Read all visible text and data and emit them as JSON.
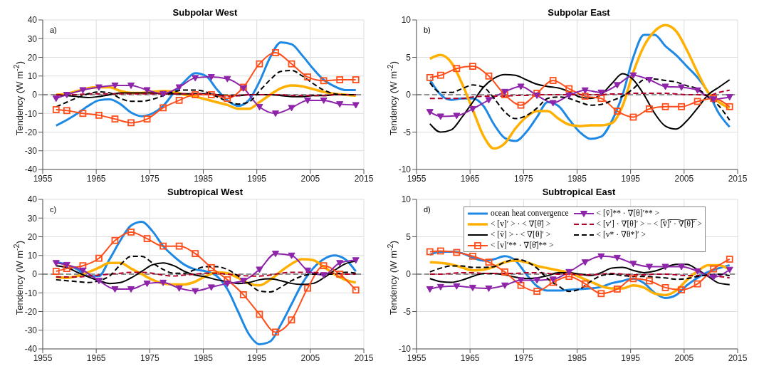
{
  "chart_data": [
    {
      "type": "line",
      "title": "Subpolar West",
      "ylabel": "Tendency (W m$^{-2}$)",
      "annotations": [
        "a)"
      ],
      "xlim": [
        1955,
        2015
      ],
      "xticks": [
        1955,
        1965,
        1975,
        1985,
        1995,
        2005,
        2015
      ],
      "ylim": [
        -40,
        40
      ],
      "yticks": [
        -40,
        -30,
        -20,
        -10,
        0,
        10,
        20,
        30,
        40
      ],
      "grid": true,
      "legend": false,
      "ref_lines": [
        {
          "axis": "y",
          "value": 0,
          "color": "#000000",
          "line_style": "dashed"
        }
      ],
      "x": [
        1957.5,
        1959.5,
        1961.5,
        1963.5,
        1965.5,
        1967.5,
        1969.5,
        1971.5,
        1973.5,
        1975.5,
        1977.5,
        1979.5,
        1981.5,
        1983.5,
        1985.5,
        1987.5,
        1989.5,
        1991.5,
        1993.5,
        1995.5,
        1997.5,
        1999.5,
        2001.5,
        2003.5,
        2005.5,
        2007.5,
        2009.5,
        2011.5,
        2013.5
      ],
      "series": [
        {
          "color": "#1e88e5",
          "line_style": "solid",
          "marker": "none",
          "values": [
            -16.5,
            -13.5,
            -10,
            -6,
            -3,
            -2.5,
            -5,
            -9.5,
            -11.5,
            -10,
            -6,
            1,
            7,
            11.5,
            10,
            3,
            -3,
            -6,
            -3,
            7,
            20,
            28,
            27,
            21,
            14,
            8,
            4.5,
            2.5,
            2.5
          ]
        },
        {
          "color": "#ffb000",
          "line_style": "solid",
          "marker": "none",
          "values": [
            0,
            0.5,
            2,
            3.5,
            4,
            4,
            2,
            1,
            1,
            1.5,
            2,
            1.5,
            0,
            -1,
            -2.5,
            -4,
            -5.5,
            -7.5,
            -7.5,
            -4,
            0,
            3.5,
            5,
            4.5,
            3,
            1.5,
            0.5,
            0,
            -0.5
          ]
        },
        {
          "color": "#000000",
          "line_style": "solid",
          "marker": "none",
          "values": [
            0,
            -0.5,
            -1,
            -1.5,
            -1,
            0,
            1,
            1,
            1,
            1,
            0.5,
            0.5,
            0.5,
            0.5,
            0.5,
            0,
            -0.5,
            -0.5,
            0,
            0,
            0,
            -0.5,
            -1,
            -1,
            -0.5,
            -0.5,
            0,
            0,
            0
          ]
        },
        {
          "color": "#ff4d1a",
          "line_style": "solid",
          "marker": "square",
          "x": [
            1957.5,
            1959.5,
            1962.5,
            1965.5,
            1968.5,
            1971.5,
            1974.5,
            1977.5,
            1980.5,
            1983.5,
            1986.5,
            1989.5,
            1992.5,
            1995.5,
            1998.5,
            2001.5,
            2004.5,
            2007.5,
            2010.5,
            2013.5
          ],
          "values": [
            -8,
            -8.5,
            -10,
            -11,
            -13,
            -15,
            -13,
            -7,
            -3,
            0,
            0,
            -2,
            4,
            16.5,
            22.5,
            16.5,
            9.5,
            7.5,
            8,
            8
          ]
        },
        {
          "color": "#8e24aa",
          "line_style": "solid",
          "marker": "triangle",
          "x": [
            1957.5,
            1959.5,
            1962.5,
            1965.5,
            1968.5,
            1971.5,
            1974.5,
            1977.5,
            1980.5,
            1983.5,
            1986.5,
            1989.5,
            1992.5,
            1995.5,
            1998.5,
            2001.5,
            2004.5,
            2007.5,
            2010.5,
            2013.5
          ],
          "values": [
            -2,
            0,
            2.5,
            4,
            5,
            5,
            2.5,
            0.5,
            4,
            9,
            9.5,
            8.5,
            3.5,
            -6.5,
            -10,
            -7,
            -3,
            -3,
            -5,
            -5.5
          ]
        },
        {
          "color": "#b0002a",
          "line_style": "dashed",
          "marker": "none",
          "values": [
            0,
            0,
            0,
            0.5,
            0.5,
            0.5,
            0.5,
            0.5,
            0.5,
            0.5,
            0.5,
            0.5,
            0.5,
            0.5,
            0.5,
            0,
            -1,
            -0.5,
            0,
            0,
            0,
            0,
            -0.5,
            -0.5,
            -0.5,
            -0.5,
            0,
            0,
            0
          ]
        },
        {
          "color": "#000000",
          "line_style": "dashed",
          "marker": "none",
          "values": [
            -6.5,
            -4,
            -1.5,
            0.5,
            1.5,
            1,
            -2,
            -3.5,
            -3.5,
            -2.5,
            -0.5,
            1.5,
            2.5,
            2.5,
            1.5,
            -1,
            -3.5,
            -5,
            -4,
            2,
            8,
            12.5,
            13,
            10,
            6,
            2.5,
            0.5,
            0,
            0
          ]
        }
      ]
    },
    {
      "type": "line",
      "title": "Subpolar East",
      "ylabel": "Tendency (W m$^{-2}$)",
      "annotations": [
        "b)"
      ],
      "xlim": [
        1955,
        2015
      ],
      "xticks": [
        1955,
        1965,
        1975,
        1985,
        1995,
        2005,
        2015
      ],
      "ylim": [
        -10,
        10
      ],
      "yticks": [
        -10,
        -5,
        0,
        5,
        10
      ],
      "grid": true,
      "legend": false,
      "ref_lines": [
        {
          "axis": "y",
          "value": 0,
          "color": "#000000",
          "line_style": "dashed"
        }
      ],
      "x": [
        1957.5,
        1959.5,
        1961.5,
        1963.5,
        1965.5,
        1967.5,
        1969.5,
        1971.5,
        1973.5,
        1975.5,
        1977.5,
        1979.5,
        1981.5,
        1983.5,
        1985.5,
        1987.5,
        1989.5,
        1991.5,
        1993.5,
        1995.5,
        1997.5,
        1999.5,
        2001.5,
        2003.5,
        2005.5,
        2007.5,
        2009.5,
        2011.5,
        2013.5
      ],
      "series": [
        {
          "color": "#1e88e5",
          "line_style": "solid",
          "marker": "none",
          "values": [
            2,
            0,
            -0.7,
            -0.5,
            -0.5,
            -1.5,
            -4,
            -5.8,
            -6.2,
            -5,
            -3,
            -1,
            -1.5,
            -3.3,
            -5,
            -5.9,
            -5.6,
            -3.5,
            0,
            5,
            8,
            8,
            6.5,
            5.3,
            3.8,
            2.3,
            0.3,
            -2.5,
            -4.3
          ]
        },
        {
          "color": "#ffb000",
          "line_style": "solid",
          "marker": "none",
          "values": [
            4.8,
            5.3,
            4.3,
            1.5,
            -2,
            -5.5,
            -7.2,
            -6.5,
            -4.5,
            -3,
            -2.2,
            -2.2,
            -3.2,
            -4,
            -4.2,
            -4.1,
            -4.1,
            -3.8,
            -1.5,
            3,
            6.5,
            8.5,
            9.3,
            8.5,
            6,
            3,
            0.3,
            -1,
            -1.8
          ]
        },
        {
          "color": "#000000",
          "line_style": "solid",
          "marker": "none",
          "values": [
            -3.9,
            -5,
            -4.7,
            -3,
            -1,
            1,
            2.2,
            2.7,
            2.6,
            2,
            1.4,
            1.1,
            0.9,
            0.4,
            -0.3,
            -0.5,
            0,
            1.5,
            2.8,
            2,
            0,
            -2.5,
            -4.2,
            -4.6,
            -3.5,
            -1.8,
            0,
            1,
            2
          ]
        },
        {
          "color": "#ff4d1a",
          "line_style": "solid",
          "marker": "square",
          "x": [
            1957.5,
            1959.5,
            1962.5,
            1965.5,
            1968.5,
            1971.5,
            1974.5,
            1977.5,
            1980.5,
            1983.5,
            1986.5,
            1989.5,
            1992.5,
            1995.5,
            1998.5,
            2001.5,
            2004.5,
            2007.5,
            2010.5,
            2013.5
          ],
          "values": [
            2.3,
            2.6,
            3.5,
            3.8,
            2.5,
            0,
            -1.4,
            0.2,
            1.9,
            0.8,
            -0.2,
            -0.5,
            -2.2,
            -3,
            -1.9,
            -1.6,
            -1.6,
            -0.9,
            -0.5,
            -1.6
          ]
        },
        {
          "color": "#8e24aa",
          "line_style": "solid",
          "marker": "triangle",
          "x": [
            1957.5,
            1959.5,
            1962.5,
            1965.5,
            1968.5,
            1971.5,
            1974.5,
            1977.5,
            1980.5,
            1983.5,
            1986.5,
            1989.5,
            1992.5,
            1995.5,
            1998.5,
            2001.5,
            2004.5,
            2007.5,
            2010.5,
            2013.5
          ],
          "values": [
            -2.3,
            -2.9,
            -2.8,
            -1.9,
            -0.7,
            0.4,
            1.1,
            -0.1,
            -1.1,
            -0.1,
            0.6,
            0.3,
            1.3,
            2.6,
            2,
            1.1,
            1,
            0.6,
            -0.6,
            -0.3
          ]
        },
        {
          "color": "#b0002a",
          "line_style": "dashed",
          "marker": "none",
          "values": [
            -0.5,
            -0.5,
            -0.5,
            -0.5,
            -0.3,
            -0.2,
            -0.2,
            -0.2,
            -0.1,
            -0.1,
            0,
            0,
            0,
            0,
            0,
            0,
            0,
            0.1,
            0.1,
            0.2,
            0.2,
            0.2,
            0.2,
            0.1,
            0,
            0,
            -0.1,
            0.3,
            0.6
          ]
        },
        {
          "color": "#000000",
          "line_style": "dashed",
          "marker": "none",
          "values": [
            1.6,
            0.3,
            0.3,
            0.8,
            1.3,
            1,
            -0.5,
            -2.3,
            -3.2,
            -2.8,
            -1.8,
            -0.5,
            -0.3,
            -0.5,
            -1,
            -1.4,
            -1.3,
            -0.8,
            -0.2,
            0.8,
            2,
            2.1,
            1.9,
            1.7,
            1.2,
            0.8,
            -0.3,
            -1.5,
            -3.4
          ]
        }
      ]
    },
    {
      "type": "line",
      "title": "Subtropical West",
      "ylabel": "Tendency (W m$^{-2}$)",
      "annotations": [
        "c)"
      ],
      "xlim": [
        1955,
        2015
      ],
      "xticks": [
        1955,
        1965,
        1975,
        1985,
        1995,
        2005,
        2015
      ],
      "ylim": [
        -40,
        40
      ],
      "yticks": [
        -40,
        -30,
        -20,
        -10,
        0,
        10,
        20,
        30,
        40
      ],
      "grid": true,
      "legend": false,
      "ref_lines": [
        {
          "axis": "y",
          "value": 0,
          "color": "#000000",
          "line_style": "dashed"
        }
      ],
      "x": [
        1957.5,
        1959.5,
        1961.5,
        1963.5,
        1965.5,
        1967.5,
        1969.5,
        1971.5,
        1973.5,
        1975.5,
        1977.5,
        1979.5,
        1981.5,
        1983.5,
        1985.5,
        1987.5,
        1989.5,
        1991.5,
        1993.5,
        1995.5,
        1997.5,
        1999.5,
        2001.5,
        2003.5,
        2005.5,
        2007.5,
        2009.5,
        2011.5,
        2013.5
      ],
      "series": [
        {
          "color": "#1e88e5",
          "line_style": "solid",
          "marker": "none",
          "values": [
            6.5,
            5,
            2.5,
            -1,
            -1,
            8,
            18,
            26,
            28,
            23,
            15,
            9.5,
            5,
            2.5,
            1.5,
            -1,
            -8,
            -20,
            -32,
            -37.5,
            -36,
            -27,
            -16,
            -5,
            3,
            8,
            10,
            8,
            1.5
          ]
        },
        {
          "color": "#ffb000",
          "line_style": "solid",
          "marker": "none",
          "values": [
            -1.5,
            -2,
            -1,
            1,
            3.5,
            6,
            6,
            3,
            0,
            -3,
            -5,
            -5.5,
            -5.5,
            -4,
            -1,
            1,
            0.5,
            -2,
            -5,
            -6,
            -3,
            1.5,
            5.5,
            8,
            7.5,
            4,
            0,
            -3,
            -4.5
          ]
        },
        {
          "color": "#000000",
          "line_style": "solid",
          "marker": "none",
          "values": [
            4.5,
            3.5,
            1,
            -1.5,
            -3.5,
            -5,
            -4.5,
            -2,
            1.5,
            5,
            6,
            4.5,
            1.5,
            -0.5,
            -1.5,
            -3,
            -4,
            -5,
            -4.5,
            -3,
            -2.5,
            -3.5,
            -5,
            -5.5,
            -5,
            -2,
            2,
            5.5,
            7
          ]
        },
        {
          "color": "#ff4d1a",
          "line_style": "solid",
          "marker": "square",
          "x": [
            1957.5,
            1959.5,
            1962.5,
            1965.5,
            1968.5,
            1971.5,
            1974.5,
            1977.5,
            1980.5,
            1983.5,
            1986.5,
            1989.5,
            1992.5,
            1995.5,
            1998.5,
            2001.5,
            2004.5,
            2007.5,
            2010.5,
            2013.5
          ],
          "values": [
            1.5,
            3,
            4.5,
            8.5,
            18,
            22.5,
            19,
            15,
            15,
            11,
            3.5,
            -3,
            -11,
            -21.5,
            -31,
            -24.5,
            -7.5,
            4.5,
            0,
            -8.5
          ]
        },
        {
          "color": "#8e24aa",
          "line_style": "solid",
          "marker": "triangle",
          "x": [
            1957.5,
            1959.5,
            1962.5,
            1965.5,
            1968.5,
            1971.5,
            1974.5,
            1977.5,
            1980.5,
            1983.5,
            1986.5,
            1989.5,
            1992.5,
            1995.5,
            1998.5,
            2001.5,
            2004.5,
            2007.5,
            2010.5,
            2013.5
          ],
          "values": [
            6,
            5,
            2,
            -3.5,
            -8,
            -8,
            -5,
            -4.5,
            -7.5,
            -9,
            -7,
            -5,
            -3.5,
            2.5,
            11,
            10,
            2,
            -0.5,
            6,
            7.5
          ]
        },
        {
          "color": "#b0002a",
          "line_style": "dashed",
          "marker": "none",
          "values": [
            -1.5,
            -1.5,
            -1.5,
            -1,
            -0.5,
            0,
            0.5,
            1,
            1,
            0.5,
            -0.5,
            -1,
            -0.5,
            0,
            0.5,
            0.5,
            0,
            -0.5,
            -1,
            -1,
            -0.5,
            0.5,
            1,
            1,
            1,
            0.5,
            0.5,
            0,
            0
          ]
        },
        {
          "color": "#000000",
          "line_style": "dashed",
          "marker": "none",
          "values": [
            -3,
            -3.5,
            -4,
            -4.5,
            -3.5,
            -1,
            5,
            9.5,
            9.5,
            6,
            2.5,
            0.5,
            0.5,
            2.5,
            4,
            4,
            2.5,
            -1,
            -5,
            -9,
            -9.5,
            -7,
            -3.5,
            -1,
            0,
            0,
            0,
            1,
            0.5
          ]
        }
      ]
    },
    {
      "type": "line",
      "title": "Subtropical East",
      "ylabel": "Tendency (W m$^{-2}$)",
      "annotations": [
        "d)"
      ],
      "xlim": [
        1955,
        2015
      ],
      "xticks": [
        1955,
        1965,
        1975,
        1985,
        1995,
        2005,
        2015
      ],
      "ylim": [
        -10,
        10
      ],
      "yticks": [
        -10,
        -5,
        0,
        5,
        10
      ],
      "grid": true,
      "legend": "top",
      "ref_lines": [
        {
          "axis": "y",
          "value": 0,
          "color": "#000000",
          "line_style": "dashed"
        }
      ],
      "x": [
        1957.5,
        1959.5,
        1961.5,
        1963.5,
        1965.5,
        1967.5,
        1969.5,
        1971.5,
        1973.5,
        1975.5,
        1977.5,
        1979.5,
        1981.5,
        1983.5,
        1985.5,
        1987.5,
        1989.5,
        1991.5,
        1993.5,
        1995.5,
        1997.5,
        1999.5,
        2001.5,
        2003.5,
        2005.5,
        2007.5,
        2009.5,
        2011.5,
        2013.5
      ],
      "series": [
        {
          "name": "ocean heat convergence",
          "color": "#1e88e5",
          "line_style": "solid",
          "marker": "none",
          "values": [
            2.6,
            3,
            3,
            2.8,
            2.2,
            1.8,
            2,
            2.4,
            1.8,
            0,
            -1.6,
            -2.2,
            -2.2,
            -2.1,
            -2,
            -1.9,
            -1.7,
            -1.2,
            -0.9,
            -0.6,
            -1.2,
            -2.5,
            -3.2,
            -2.8,
            -1.5,
            -0.5,
            0.3,
            0.8,
            1.2
          ]
        },
        {
          "name": "< [v]′ > · < ∇[θ̄] >",
          "color": "#ffb000",
          "line_style": "solid",
          "marker": "none",
          "values": [
            1.6,
            1.5,
            1.3,
            0.9,
            0.5,
            0.6,
            1,
            1.6,
            1.8,
            1.6,
            1.1,
            0.8,
            0.5,
            0.2,
            -0.4,
            -1,
            -1.6,
            -1.9,
            -1.9,
            -1.5,
            -1.8,
            -2.6,
            -2.8,
            -2.2,
            -0.8,
            0.4,
            1.2,
            1.2,
            0.6
          ]
        },
        {
          "name": "< [v̄] > · < ∇[θ]′ >",
          "color": "#000000",
          "line_style": "solid",
          "marker": "none",
          "values": [
            -0.6,
            -1,
            -1.1,
            -0.8,
            -0.3,
            0.1,
            0.1,
            -0.1,
            -0.4,
            -0.6,
            -0.5,
            -0.2,
            0.2,
            0.2,
            0,
            -0.2,
            0.2,
            0.8,
            0.9,
            0.5,
            0.2,
            0.4,
            0.9,
            1.3,
            1.3,
            0.6,
            -0.3,
            -1.2,
            -1.4
          ]
        },
        {
          "name": "< [v]′** · ∇[θ̄]** >",
          "color": "#ff4d1a",
          "line_style": "solid",
          "marker": "square",
          "x": [
            1957.5,
            1959.5,
            1962.5,
            1965.5,
            1968.5,
            1971.5,
            1974.5,
            1977.5,
            1980.5,
            1983.5,
            1986.5,
            1989.5,
            1992.5,
            1995.5,
            1998.5,
            2001.5,
            2004.5,
            2007.5,
            2010.5,
            2013.5
          ],
          "values": [
            3,
            3.1,
            2.9,
            2.4,
            1.6,
            0.3,
            -1.5,
            -2.3,
            -1.1,
            -0.3,
            -1.3,
            -2.6,
            -2,
            -0.6,
            -0.9,
            -1.8,
            -2.1,
            -1.3,
            0.7,
            2
          ]
        },
        {
          "name": "< [v̄]** · ∇[θ]′** >",
          "color": "#8e24aa",
          "line_style": "solid",
          "marker": "triangle",
          "x": [
            1957.5,
            1959.5,
            1962.5,
            1965.5,
            1968.5,
            1971.5,
            1974.5,
            1977.5,
            1980.5,
            1983.5,
            1986.5,
            1989.5,
            1992.5,
            1995.5,
            1998.5,
            2001.5,
            2004.5,
            2007.5,
            2010.5,
            2013.5
          ],
          "values": [
            -2,
            -1.7,
            -1.6,
            -1.8,
            -1.9,
            -1.5,
            -0.8,
            -0.8,
            -0.7,
            0.3,
            1.6,
            2.4,
            2.2,
            1.4,
            1,
            1,
            1,
            0.4,
            -0.4,
            0.6
          ]
        },
        {
          "name": "< [v′] · ∇[θ]′ > − < [̅v̅]̅′̅ ̅·̅ ̅∇̅[̅θ̅]̅′̅ >",
          "color": "#b0002a",
          "line_style": "dashed",
          "marker": "none",
          "values": [
            0,
            0,
            0.1,
            0.2,
            0.2,
            0.1,
            0.1,
            0.1,
            0.1,
            0.2,
            0.2,
            0.1,
            0,
            0,
            -0.1,
            -0.1,
            0,
            0.1,
            0,
            -0.1,
            -0.1,
            0,
            0,
            -0.1,
            -0.2,
            -0.2,
            -0.2,
            -0.3,
            -0.5
          ]
        },
        {
          "name": "< [v* · ∇θ*]′ >",
          "color": "#000000",
          "line_style": "dashed",
          "marker": "none",
          "values": [
            0.3,
            0.8,
            1.1,
            1.1,
            0.9,
            0.9,
            1,
            1.6,
            2,
            1.7,
            0.8,
            -0.6,
            -1.6,
            -2.3,
            -2,
            -1,
            -0.2,
            0,
            -0.2,
            -0.3,
            -0.3,
            -0.4,
            -0.5,
            -0.7,
            -0.6,
            -0.3,
            -0.1,
            0,
            -0.2
          ]
        }
      ]
    }
  ]
}
